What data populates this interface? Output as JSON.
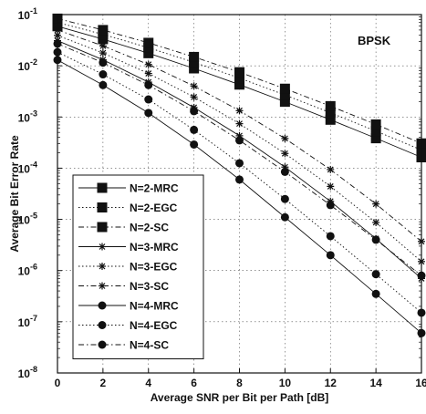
{
  "chart_data": {
    "type": "line",
    "xlabel": "Average SNR per Bit per Path [dB]",
    "ylabel": "Average Bit Error Rate",
    "annotation": "BPSK",
    "xlim": [
      0,
      16
    ],
    "ylim_log10": [
      -8,
      -1
    ],
    "y_scale": "log",
    "grid": true,
    "legend_position": "bottom-left",
    "x_ticks": [
      "0",
      "2",
      "4",
      "6",
      "8",
      "10",
      "12",
      "14",
      "16"
    ],
    "y_ticks": [
      {
        "exp": -1,
        "label": "-1"
      },
      {
        "exp": -2,
        "label": "-2"
      },
      {
        "exp": -3,
        "label": "-3"
      },
      {
        "exp": -4,
        "label": "-4"
      },
      {
        "exp": -5,
        "label": "-5"
      },
      {
        "exp": -6,
        "label": "-6"
      },
      {
        "exp": -7,
        "label": "-7"
      },
      {
        "exp": -8,
        "label": "-8"
      }
    ],
    "tick_base": "10",
    "x": [
      0,
      2,
      4,
      6,
      8,
      10,
      12,
      14,
      16
    ],
    "series": [
      {
        "name": "N=2-MRC",
        "marker": "square",
        "dash": "solid",
        "values": [
          0.0592,
          0.0331,
          0.0176,
          0.00889,
          0.00429,
          0.00198,
          0.000883,
          0.000384,
          0.000163
        ]
      },
      {
        "name": "N=2-EGC",
        "marker": "square",
        "dash": "dotted",
        "values": [
          0.0702,
          0.0411,
          0.0226,
          0.0117,
          0.00576,
          0.00269,
          0.00121,
          0.00053,
          0.000227
        ]
      },
      {
        "name": "N=2-SC",
        "marker": "square",
        "dash": "dashdot",
        "values": [
          0.0835,
          0.05,
          0.0281,
          0.0149,
          0.0075,
          0.00357,
          0.00163,
          0.000715,
          0.000305
        ]
      },
      {
        "name": "N=3-MRC",
        "marker": "star",
        "dash": "solid",
        "values": [
          0.031,
          0.0131,
          0.0048,
          0.00153,
          0.00043,
          0.000105,
          2.25e-05,
          4.2e-06,
          7e-07
        ]
      },
      {
        "name": "N=3-EGC",
        "marker": "star",
        "dash": "dotted",
        "values": [
          0.0392,
          0.0178,
          0.00708,
          0.00245,
          0.00074,
          0.000194,
          4.41e-05,
          8.7e-06,
          1.5e-06
        ]
      },
      {
        "name": "N=3-SC",
        "marker": "star",
        "dash": "dashdot",
        "values": [
          0.05,
          0.0245,
          0.0106,
          0.00402,
          0.00133,
          0.00038,
          9.4e-05,
          2e-05,
          3.7e-06
        ]
      },
      {
        "name": "N=4-MRC",
        "marker": "circle",
        "dash": "solid",
        "values": [
          0.013,
          0.0042,
          0.0012,
          0.00029,
          6e-05,
          1.1e-05,
          2e-06,
          3.5e-07,
          6e-08
        ]
      },
      {
        "name": "N=4-EGC",
        "marker": "circle",
        "dash": "dotted",
        "values": [
          0.0185,
          0.0068,
          0.0022,
          0.00056,
          0.000125,
          2.5e-05,
          4.7e-06,
          8.5e-07,
          1.5e-07
        ]
      },
      {
        "name": "N=4-SC",
        "marker": "circle",
        "dash": "dashdot",
        "values": [
          0.027,
          0.0115,
          0.0042,
          0.0013,
          0.00035,
          8.5e-05,
          1.9e-05,
          4e-06,
          8e-07
        ]
      }
    ]
  }
}
